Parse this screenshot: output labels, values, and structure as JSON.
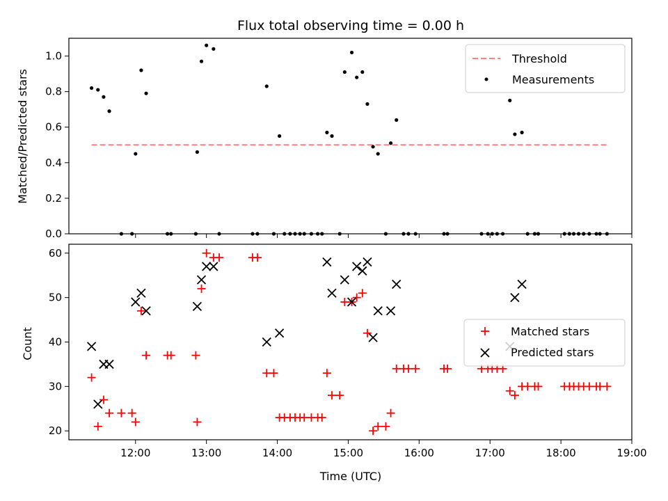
{
  "chart_data": [
    {
      "type": "scatter",
      "title": "Flux total observing time = 0.00 h",
      "xlabel": "",
      "ylabel": "Matched/Predicted stars",
      "xlim": [
        11.06,
        19.0
      ],
      "ylim": [
        0,
        1.1
      ],
      "xticks": [
        12,
        13,
        14,
        15,
        16,
        17,
        18,
        19
      ],
      "xtick_labels": [],
      "yticks": [
        0,
        0.2,
        0.4,
        0.6,
        0.8,
        1.0
      ],
      "ytick_labels": [
        "0.0",
        "0.2",
        "0.4",
        "0.6",
        "0.8",
        "1.0"
      ],
      "legend_position": "top-right",
      "threshold": {
        "name": "Threshold",
        "y": 0.5,
        "x": [
          11.38,
          18.65
        ],
        "color": "#ff8080",
        "style": "dashed"
      },
      "series": [
        {
          "name": "Measurements",
          "color": "#000000",
          "marker": "dot",
          "points": [
            [
              11.38,
              0.82
            ],
            [
              11.47,
              0.81
            ],
            [
              11.55,
              0.77
            ],
            [
              11.63,
              0.69
            ],
            [
              11.8,
              0.0
            ],
            [
              11.95,
              0.0
            ],
            [
              12.0,
              0.45
            ],
            [
              12.08,
              0.92
            ],
            [
              12.15,
              0.79
            ],
            [
              12.45,
              0.0
            ],
            [
              12.5,
              0.0
            ],
            [
              12.85,
              0.0
            ],
            [
              12.87,
              0.46
            ],
            [
              12.93,
              0.97
            ],
            [
              13.0,
              1.06
            ],
            [
              13.1,
              1.04
            ],
            [
              13.18,
              0.0
            ],
            [
              13.65,
              0.0
            ],
            [
              13.72,
              0.0
            ],
            [
              13.85,
              0.83
            ],
            [
              13.95,
              0.0
            ],
            [
              14.03,
              0.55
            ],
            [
              14.1,
              0.0
            ],
            [
              14.18,
              0.0
            ],
            [
              14.25,
              0.0
            ],
            [
              14.32,
              0.0
            ],
            [
              14.38,
              0.0
            ],
            [
              14.48,
              0.0
            ],
            [
              14.57,
              0.0
            ],
            [
              14.63,
              0.0
            ],
            [
              14.7,
              0.57
            ],
            [
              14.77,
              0.55
            ],
            [
              14.88,
              0.0
            ],
            [
              14.95,
              0.91
            ],
            [
              15.05,
              1.02
            ],
            [
              15.12,
              0.88
            ],
            [
              15.2,
              0.91
            ],
            [
              15.27,
              0.73
            ],
            [
              15.35,
              0.49
            ],
            [
              15.42,
              0.45
            ],
            [
              15.53,
              0.0
            ],
            [
              15.6,
              0.51
            ],
            [
              15.68,
              0.64
            ],
            [
              15.78,
              0.0
            ],
            [
              15.85,
              0.0
            ],
            [
              15.95,
              0.0
            ],
            [
              16.35,
              0.0
            ],
            [
              16.4,
              0.0
            ],
            [
              16.88,
              0.0
            ],
            [
              16.97,
              0.0
            ],
            [
              17.03,
              0.0
            ],
            [
              17.1,
              0.0
            ],
            [
              17.18,
              0.0
            ],
            [
              17.28,
              0.75
            ],
            [
              17.35,
              0.56
            ],
            [
              17.45,
              0.57
            ],
            [
              17.53,
              0.0
            ],
            [
              17.63,
              0.0
            ],
            [
              17.68,
              0.0
            ],
            [
              18.05,
              0.0
            ],
            [
              18.12,
              0.0
            ],
            [
              18.18,
              0.0
            ],
            [
              18.25,
              0.0
            ],
            [
              18.32,
              0.0
            ],
            [
              18.4,
              0.0
            ],
            [
              18.5,
              0.0
            ],
            [
              18.55,
              0.0
            ],
            [
              18.65,
              0.0
            ]
          ]
        }
      ]
    },
    {
      "type": "scatter",
      "title": "",
      "xlabel": "Time (UTC)",
      "ylabel": "Count",
      "xlim": [
        11.06,
        19.0
      ],
      "ylim": [
        18,
        62
      ],
      "xticks": [
        12,
        13,
        14,
        15,
        16,
        17,
        18,
        19
      ],
      "xtick_labels": [
        "12:00",
        "13:00",
        "14:00",
        "15:00",
        "16:00",
        "17:00",
        "18:00",
        "19:00"
      ],
      "yticks": [
        20,
        30,
        40,
        50,
        60
      ],
      "ytick_labels": [
        "20",
        "30",
        "40",
        "50",
        "60"
      ],
      "legend_position": "center-right",
      "series": [
        {
          "name": "Matched stars",
          "color": "#ff0000",
          "marker": "plus",
          "points": [
            [
              11.38,
              32
            ],
            [
              11.47,
              21
            ],
            [
              11.55,
              27
            ],
            [
              11.63,
              24
            ],
            [
              11.8,
              24
            ],
            [
              11.95,
              24
            ],
            [
              12.0,
              22
            ],
            [
              12.08,
              47
            ],
            [
              12.15,
              37
            ],
            [
              12.45,
              37
            ],
            [
              12.5,
              37
            ],
            [
              12.85,
              37
            ],
            [
              12.87,
              22
            ],
            [
              12.93,
              52
            ],
            [
              13.0,
              60
            ],
            [
              13.1,
              59
            ],
            [
              13.18,
              59
            ],
            [
              13.65,
              59
            ],
            [
              13.72,
              59
            ],
            [
              13.85,
              33
            ],
            [
              13.95,
              33
            ],
            [
              14.03,
              23
            ],
            [
              14.1,
              23
            ],
            [
              14.18,
              23
            ],
            [
              14.25,
              23
            ],
            [
              14.32,
              23
            ],
            [
              14.38,
              23
            ],
            [
              14.48,
              23
            ],
            [
              14.57,
              23
            ],
            [
              14.63,
              23
            ],
            [
              14.7,
              33
            ],
            [
              14.77,
              28
            ],
            [
              14.88,
              28
            ],
            [
              14.95,
              49
            ],
            [
              15.05,
              49
            ],
            [
              15.12,
              50
            ],
            [
              15.2,
              51
            ],
            [
              15.27,
              42
            ],
            [
              15.35,
              20
            ],
            [
              15.42,
              21
            ],
            [
              15.53,
              21
            ],
            [
              15.6,
              24
            ],
            [
              15.68,
              34
            ],
            [
              15.78,
              34
            ],
            [
              15.85,
              34
            ],
            [
              15.95,
              34
            ],
            [
              16.35,
              34
            ],
            [
              16.4,
              34
            ],
            [
              16.88,
              34
            ],
            [
              16.97,
              34
            ],
            [
              17.03,
              34
            ],
            [
              17.1,
              34
            ],
            [
              17.18,
              34
            ],
            [
              17.28,
              29
            ],
            [
              17.35,
              28
            ],
            [
              17.45,
              30
            ],
            [
              17.53,
              30
            ],
            [
              17.63,
              30
            ],
            [
              17.68,
              30
            ],
            [
              18.05,
              30
            ],
            [
              18.12,
              30
            ],
            [
              18.18,
              30
            ],
            [
              18.25,
              30
            ],
            [
              18.32,
              30
            ],
            [
              18.4,
              30
            ],
            [
              18.5,
              30
            ],
            [
              18.55,
              30
            ],
            [
              18.65,
              30
            ]
          ]
        },
        {
          "name": "Predicted stars",
          "color": "#000000",
          "marker": "x",
          "points": [
            [
              11.38,
              39
            ],
            [
              11.47,
              26
            ],
            [
              11.55,
              35
            ],
            [
              11.63,
              35
            ],
            [
              12.0,
              49
            ],
            [
              12.08,
              51
            ],
            [
              12.15,
              47
            ],
            [
              12.87,
              48
            ],
            [
              12.93,
              54
            ],
            [
              13.0,
              57
            ],
            [
              13.1,
              57
            ],
            [
              13.85,
              40
            ],
            [
              14.03,
              42
            ],
            [
              14.7,
              58
            ],
            [
              14.77,
              51
            ],
            [
              14.95,
              54
            ],
            [
              15.05,
              49
            ],
            [
              15.12,
              57
            ],
            [
              15.2,
              56
            ],
            [
              15.27,
              58
            ],
            [
              15.35,
              41
            ],
            [
              15.42,
              47
            ],
            [
              15.6,
              47
            ],
            [
              15.68,
              53
            ],
            [
              17.28,
              39
            ],
            [
              17.35,
              50
            ],
            [
              17.45,
              53
            ]
          ]
        }
      ]
    }
  ]
}
